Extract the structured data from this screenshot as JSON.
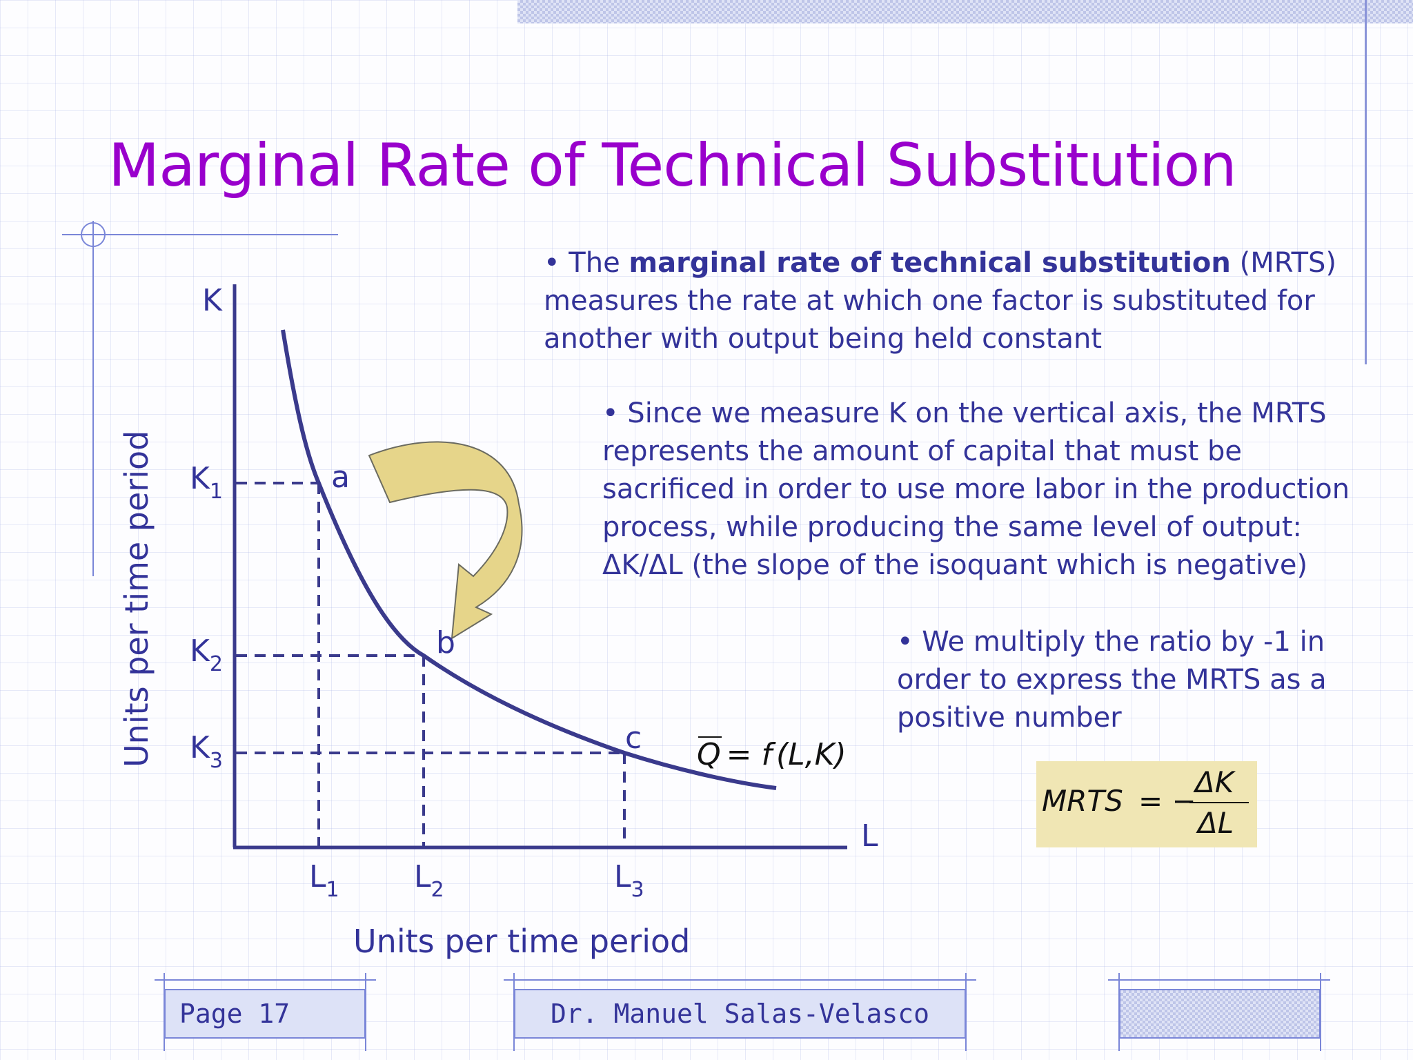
{
  "slide": {
    "title": "Marginal Rate of Technical Substitution"
  },
  "bullets": {
    "b1_prefix": "• The ",
    "b1_bold": "marginal rate of technical substitution",
    "b1_suffix": " (MRTS)",
    "b1_line2": "measures the rate at which one factor is substituted for",
    "b1_line3": "another with output being held constant",
    "b2_line1": "• Since we measure K on the vertical axis, the MRTS",
    "b2_line2": "represents the amount of capital that must be",
    "b2_line3": "sacrificed in order to use more labor in the production",
    "b2_line4": "process, while producing the same level of output:",
    "b2_line5": "ΔK/ΔL (the slope of the isoquant which is negative)",
    "b3_line1": "• We multiply the ratio by -1 in",
    "b3_line2": "order to express the MRTS as a",
    "b3_line3": "positive number"
  },
  "diagram": {
    "y_axis_label": "K",
    "x_axis_label": "L",
    "y_axis_title": "Units per time period",
    "x_axis_title": "Units per time period",
    "k_ticks": [
      {
        "base": "K",
        "sub": "1"
      },
      {
        "base": "K",
        "sub": "2"
      },
      {
        "base": "K",
        "sub": "3"
      }
    ],
    "l_ticks": [
      {
        "base": "L",
        "sub": "1"
      },
      {
        "base": "L",
        "sub": "2"
      },
      {
        "base": "L",
        "sub": "3"
      }
    ],
    "points": [
      "a",
      "b",
      "c"
    ],
    "isoquant_label": {
      "q": "Q",
      "eq": "= ",
      "f": "f",
      "args": "(L,K)"
    },
    "curve_color": "#3a3a8c",
    "arrow_color": "#e6d58a"
  },
  "formula": {
    "lhs": "MRTS",
    "eq": "= −",
    "numerator": "ΔK",
    "denominator": "ΔL"
  },
  "footer": {
    "page": "Page 17",
    "author": "Dr. Manuel Salas-Velasco"
  }
}
